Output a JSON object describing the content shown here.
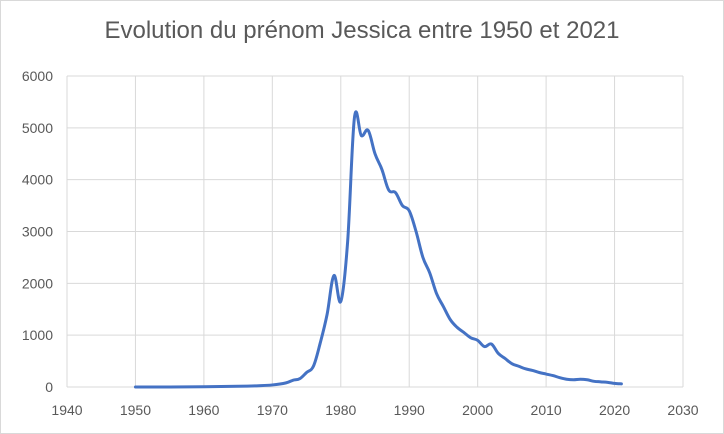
{
  "chart_data": {
    "type": "line",
    "title": "Evolution du prénom Jessica entre 1950 et 2021",
    "xlabel": "",
    "ylabel": "",
    "xlim": [
      1940,
      2030
    ],
    "ylim": [
      0,
      6000
    ],
    "x_ticks": [
      1940,
      1950,
      1960,
      1970,
      1980,
      1990,
      2000,
      2010,
      2020,
      2030
    ],
    "y_ticks": [
      0,
      1000,
      2000,
      3000,
      4000,
      5000,
      6000
    ],
    "x_tick_labels": [
      "1940",
      "1950",
      "1960",
      "1970",
      "1980",
      "1990",
      "2000",
      "2010",
      "2020",
      "2030"
    ],
    "y_tick_labels": [
      "0",
      "1000",
      "2000",
      "3000",
      "4000",
      "5000",
      "6000"
    ],
    "grid": true,
    "legend": "none",
    "colors": {
      "line": "#4472c4",
      "grid": "#d9d9d9",
      "text": "#595959"
    },
    "series": [
      {
        "x": [
          1950,
          1955,
          1960,
          1965,
          1968,
          1970,
          1972,
          1973,
          1974,
          1975,
          1976,
          1977,
          1978,
          1979,
          1980,
          1981,
          1982,
          1983,
          1984,
          1985,
          1986,
          1987,
          1988,
          1989,
          1990,
          1991,
          1992,
          1993,
          1994,
          1995,
          1996,
          1997,
          1998,
          1999,
          2000,
          2001,
          2002,
          2003,
          2004,
          2005,
          2006,
          2007,
          2008,
          2009,
          2010,
          2011,
          2012,
          2013,
          2014,
          2015,
          2016,
          2017,
          2018,
          2019,
          2020,
          2021
        ],
        "y": [
          0,
          0,
          5,
          15,
          25,
          40,
          80,
          130,
          160,
          280,
          400,
          850,
          1400,
          2150,
          1650,
          2800,
          5200,
          4850,
          4950,
          4500,
          4200,
          3800,
          3750,
          3500,
          3400,
          3000,
          2500,
          2200,
          1800,
          1550,
          1300,
          1150,
          1050,
          950,
          900,
          780,
          830,
          650,
          550,
          450,
          400,
          350,
          320,
          280,
          250,
          220,
          180,
          150,
          140,
          150,
          140,
          110,
          100,
          90,
          70,
          60
        ]
      }
    ]
  }
}
